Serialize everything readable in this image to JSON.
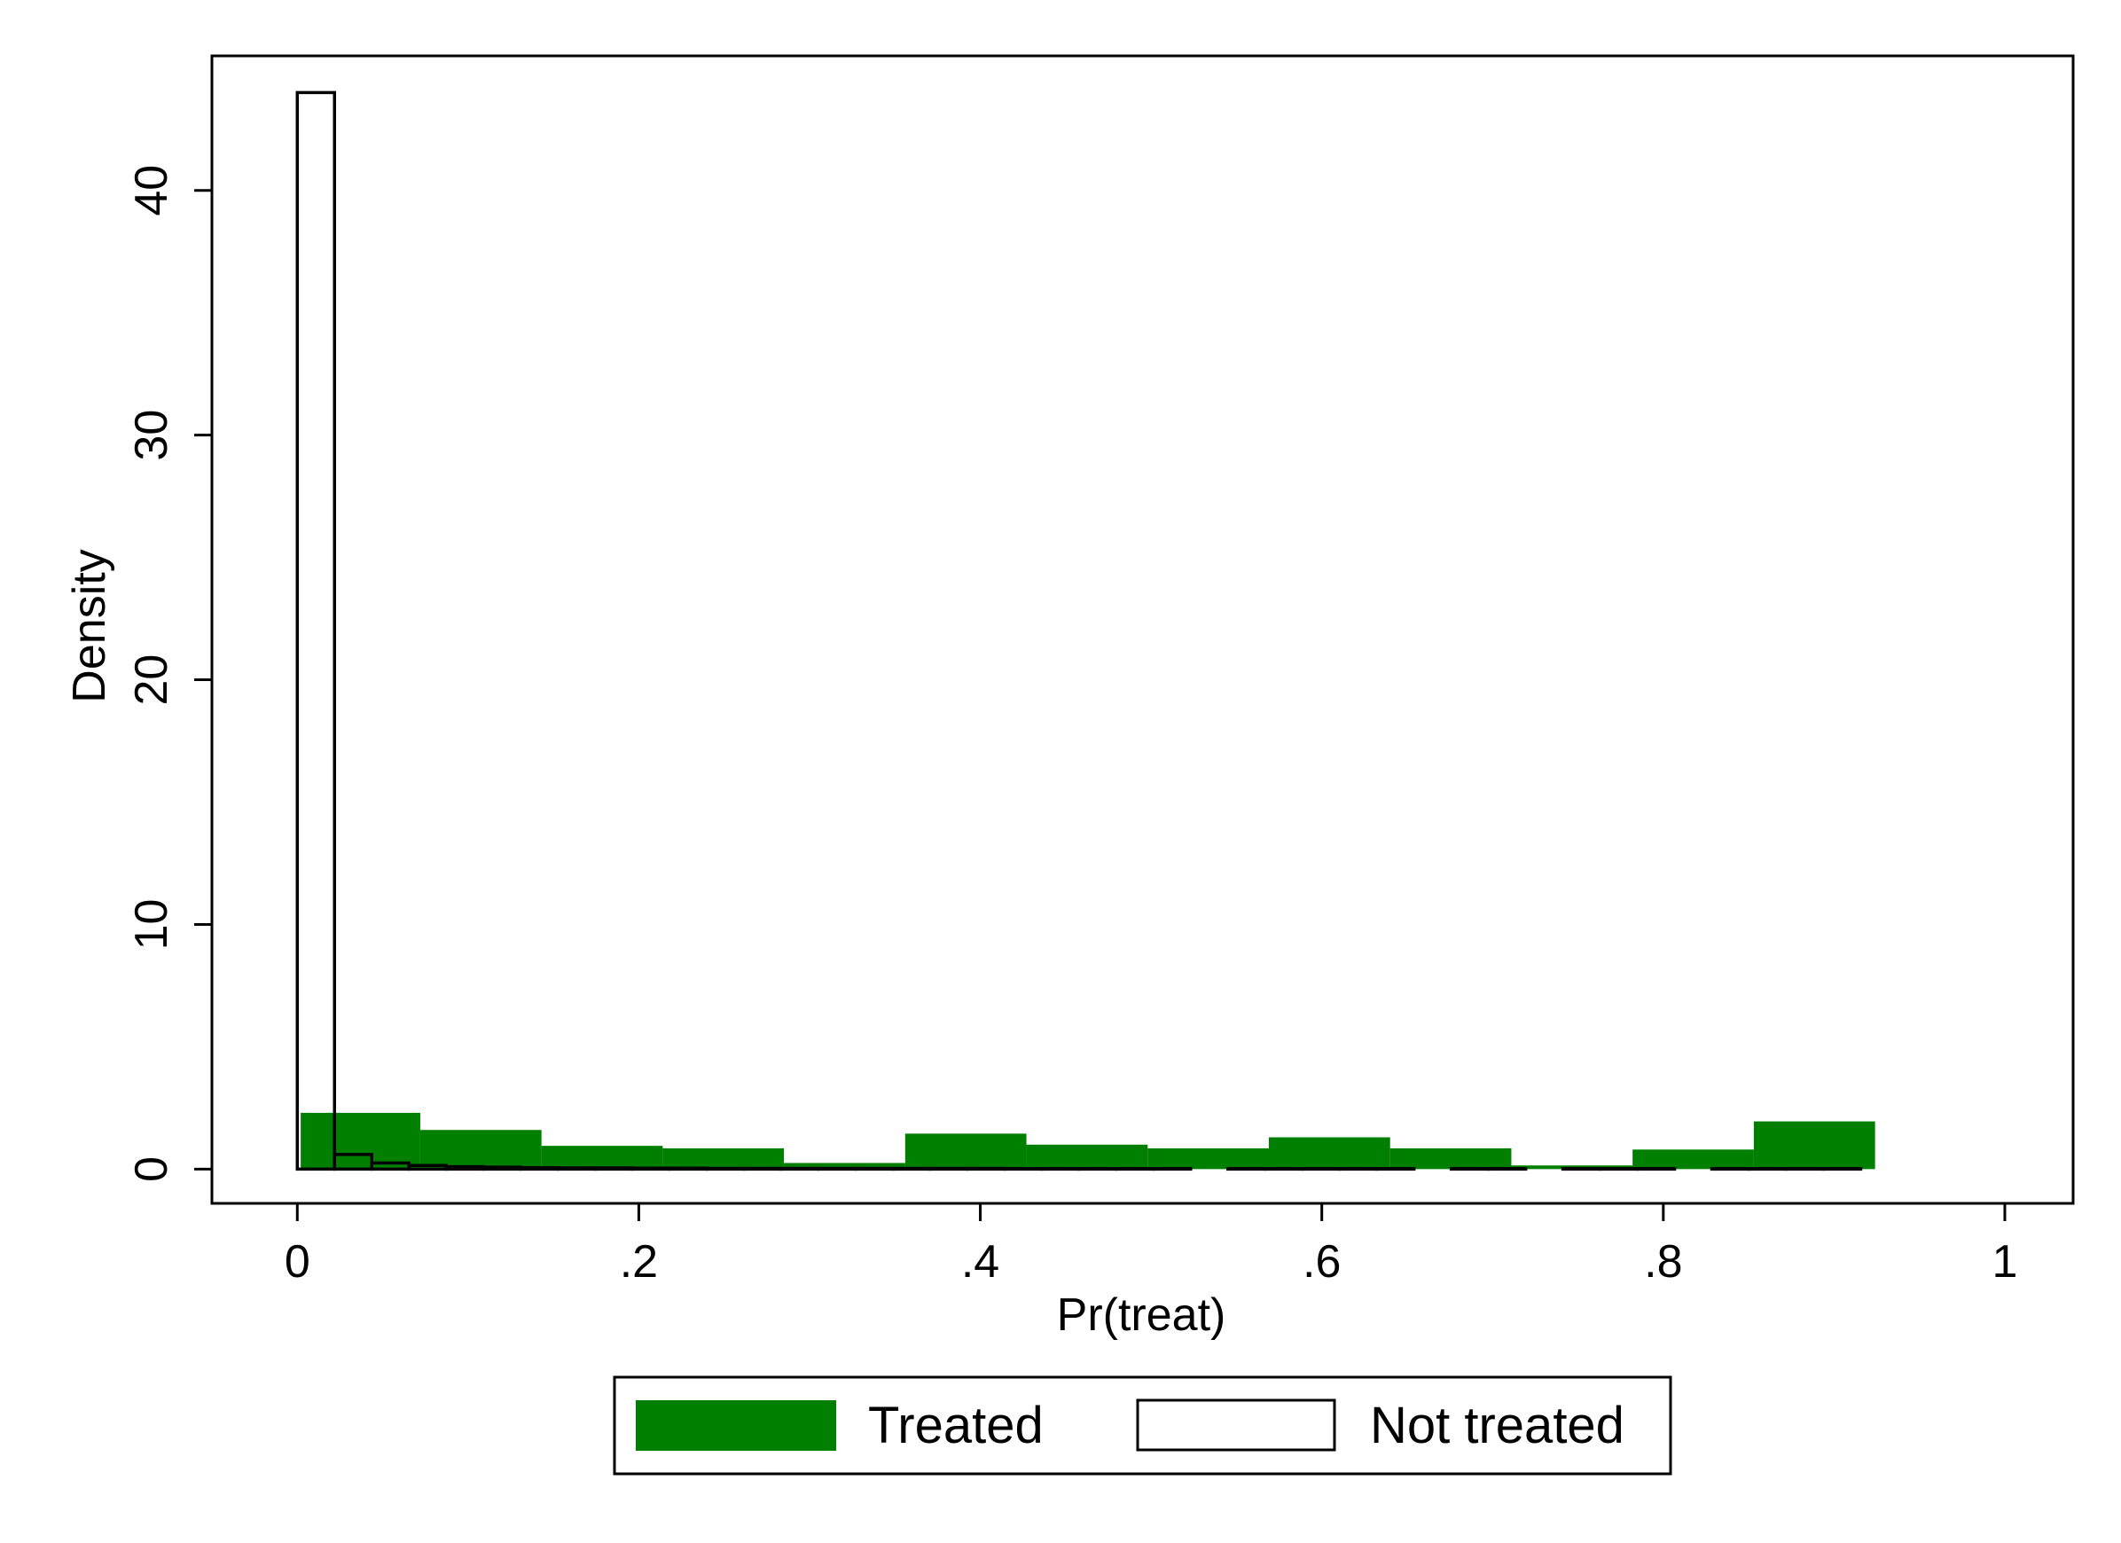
{
  "chart_data": {
    "type": "bar",
    "xlabel": "Pr(treat)",
    "ylabel": "Density",
    "xlim": [
      -0.05,
      1.04
    ],
    "ylim": [
      -1.4,
      45.5
    ],
    "x_ticks": [
      {
        "value": 0,
        "label": "0"
      },
      {
        "value": 0.2,
        "label": ".2"
      },
      {
        "value": 0.4,
        "label": ".4"
      },
      {
        "value": 0.6,
        "label": ".6"
      },
      {
        "value": 0.8,
        "label": ".8"
      },
      {
        "value": 1,
        "label": "1"
      }
    ],
    "y_ticks": [
      {
        "value": 0,
        "label": "0"
      },
      {
        "value": 10,
        "label": "10"
      },
      {
        "value": 20,
        "label": "20"
      },
      {
        "value": 30,
        "label": "30"
      },
      {
        "value": 40,
        "label": "40"
      }
    ],
    "grid": false,
    "legend_position": "bottom",
    "series": [
      {
        "name": "Treated",
        "style": "filled",
        "color": "#007f00",
        "bins": [
          {
            "x0": 0.002,
            "x1": 0.072,
            "density": 2.3
          },
          {
            "x0": 0.072,
            "x1": 0.143,
            "density": 1.6
          },
          {
            "x0": 0.143,
            "x1": 0.214,
            "density": 0.95
          },
          {
            "x0": 0.214,
            "x1": 0.285,
            "density": 0.85
          },
          {
            "x0": 0.285,
            "x1": 0.356,
            "density": 0.25
          },
          {
            "x0": 0.356,
            "x1": 0.427,
            "density": 1.45
          },
          {
            "x0": 0.427,
            "x1": 0.498,
            "density": 1.0
          },
          {
            "x0": 0.498,
            "x1": 0.569,
            "density": 0.85
          },
          {
            "x0": 0.569,
            "x1": 0.64,
            "density": 1.3
          },
          {
            "x0": 0.64,
            "x1": 0.711,
            "density": 0.85
          },
          {
            "x0": 0.711,
            "x1": 0.782,
            "density": 0.15
          },
          {
            "x0": 0.782,
            "x1": 0.853,
            "density": 0.8
          },
          {
            "x0": 0.853,
            "x1": 0.924,
            "density": 1.95
          }
        ]
      },
      {
        "name": "Not treated",
        "style": "outline",
        "color": "#000000",
        "bins": [
          {
            "x0": 0.0,
            "x1": 0.0218,
            "density": 44.0
          },
          {
            "x0": 0.0218,
            "x1": 0.0436,
            "density": 0.6
          },
          {
            "x0": 0.0436,
            "x1": 0.0654,
            "density": 0.25
          },
          {
            "x0": 0.0654,
            "x1": 0.0872,
            "density": 0.15
          },
          {
            "x0": 0.0872,
            "x1": 0.109,
            "density": 0.1
          },
          {
            "x0": 0.109,
            "x1": 0.1308,
            "density": 0.08
          },
          {
            "x0": 0.1308,
            "x1": 0.1526,
            "density": 0.06
          },
          {
            "x0": 0.1526,
            "x1": 0.1744,
            "density": 0.05
          },
          {
            "x0": 0.1744,
            "x1": 0.1962,
            "density": 0.05
          },
          {
            "x0": 0.1962,
            "x1": 0.218,
            "density": 0.04
          },
          {
            "x0": 0.218,
            "x1": 0.2398,
            "density": 0.04
          },
          {
            "x0": 0.2398,
            "x1": 0.2616,
            "density": 0.03
          },
          {
            "x0": 0.2616,
            "x1": 0.2834,
            "density": 0.03
          },
          {
            "x0": 0.2834,
            "x1": 0.3052,
            "density": 0.03
          },
          {
            "x0": 0.3052,
            "x1": 0.327,
            "density": 0.03
          },
          {
            "x0": 0.327,
            "x1": 0.3488,
            "density": 0.03
          },
          {
            "x0": 0.3488,
            "x1": 0.3706,
            "density": 0.03
          },
          {
            "x0": 0.3706,
            "x1": 0.3924,
            "density": 0.03
          },
          {
            "x0": 0.3924,
            "x1": 0.4142,
            "density": 0.03
          },
          {
            "x0": 0.4142,
            "x1": 0.436,
            "density": 0.02
          },
          {
            "x0": 0.436,
            "x1": 0.4578,
            "density": 0.02
          },
          {
            "x0": 0.4578,
            "x1": 0.4796,
            "density": 0.02
          },
          {
            "x0": 0.4796,
            "x1": 0.5014,
            "density": 0.02
          },
          {
            "x0": 0.5014,
            "x1": 0.5232,
            "density": 0.02
          },
          {
            "x0": 0.545,
            "x1": 0.5668,
            "density": 0.02
          },
          {
            "x0": 0.5668,
            "x1": 0.5886,
            "density": 0.02
          },
          {
            "x0": 0.5886,
            "x1": 0.6104,
            "density": 0.02
          },
          {
            "x0": 0.6104,
            "x1": 0.6322,
            "density": 0.02
          },
          {
            "x0": 0.6322,
            "x1": 0.654,
            "density": 0.02
          },
          {
            "x0": 0.6758,
            "x1": 0.6976,
            "density": 0.02
          },
          {
            "x0": 0.6976,
            "x1": 0.7194,
            "density": 0.02
          },
          {
            "x0": 0.7412,
            "x1": 0.763,
            "density": 0.02
          },
          {
            "x0": 0.763,
            "x1": 0.7848,
            "density": 0.02
          },
          {
            "x0": 0.7848,
            "x1": 0.8066,
            "density": 0.02
          },
          {
            "x0": 0.8284,
            "x1": 0.8502,
            "density": 0.02
          },
          {
            "x0": 0.8502,
            "x1": 0.872,
            "density": 0.02
          },
          {
            "x0": 0.872,
            "x1": 0.8938,
            "density": 0.02
          },
          {
            "x0": 0.8938,
            "x1": 0.9156,
            "density": 0.02
          }
        ]
      }
    ]
  }
}
